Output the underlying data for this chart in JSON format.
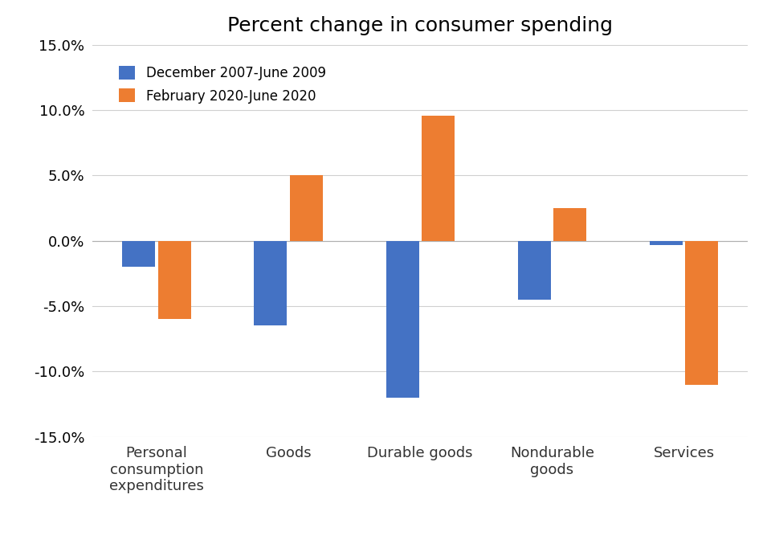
{
  "title": "Percent change in consumer spending",
  "categories": [
    "Personal\nconsumption\nexpenditures",
    "Goods",
    "Durable goods",
    "Nondurable\ngoods",
    "Services"
  ],
  "series": [
    {
      "label": "December 2007-June 2009",
      "color": "#4472C4",
      "values": [
        -2.0,
        -6.5,
        -12.0,
        -4.5,
        -0.3
      ]
    },
    {
      "label": "February 2020-June 2020",
      "color": "#ED7D31",
      "values": [
        -6.0,
        5.0,
        9.6,
        2.5,
        -11.0
      ]
    }
  ],
  "ylim": [
    -15.0,
    15.0
  ],
  "yticks": [
    -15.0,
    -10.0,
    -5.0,
    0.0,
    5.0,
    10.0,
    15.0
  ],
  "bar_width": 0.25,
  "background_color": "#ffffff",
  "grid_color": "#d0d0d0",
  "title_fontsize": 18,
  "legend_fontsize": 12,
  "tick_fontsize": 13,
  "label_fontsize": 13
}
